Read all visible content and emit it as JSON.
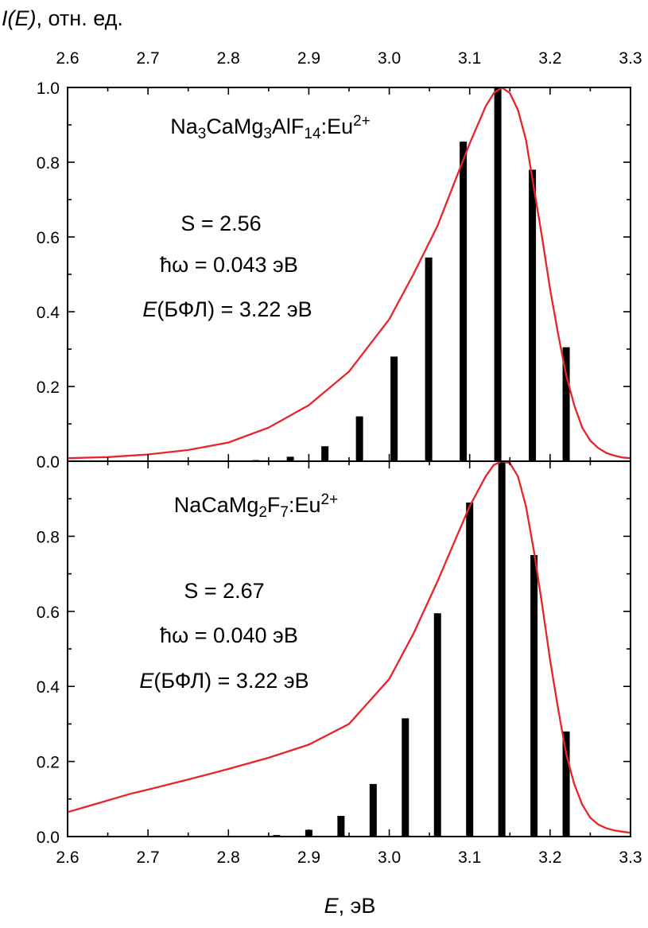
{
  "figure": {
    "y_axis_label_italic": "I(E)",
    "y_axis_label_rest": ", отн. ед.",
    "x_axis_label_italic": "E",
    "x_axis_label_rest": ", эВ"
  },
  "colors": {
    "curve": "#e8232b",
    "bars": "#000000",
    "axes": "#000000"
  },
  "chart_data": [
    {
      "type": "bar",
      "panel": "top",
      "compound": {
        "parts": [
          {
            "t": "Na",
            "s": "n"
          },
          {
            "t": "3",
            "s": "sub"
          },
          {
            "t": "CaMg",
            "s": "n"
          },
          {
            "t": "3",
            "s": "sub"
          },
          {
            "t": "AlF",
            "s": "n"
          },
          {
            "t": "14",
            "s": "sub"
          },
          {
            "t": ":Eu",
            "s": "n"
          },
          {
            "t": "2+",
            "s": "sup"
          }
        ]
      },
      "annotations": {
        "S": "S = 2.56",
        "hw": "ħω = 0.043 эВ",
        "zpl_italic": "E",
        "zpl_rest": "(БФЛ) = 3.22 эВ"
      },
      "xlim": [
        2.6,
        3.3
      ],
      "ylim": [
        0,
        1.0
      ],
      "x_ticks": [
        "2.6",
        "2.7",
        "2.8",
        "2.9",
        "3.0",
        "3.1",
        "3.2",
        "3.3"
      ],
      "y_ticks": [
        "0.0",
        "0.2",
        "0.4",
        "0.6",
        "0.8",
        "1.0"
      ],
      "bars": {
        "x": [
          2.834,
          2.877,
          2.92,
          2.963,
          3.006,
          3.049,
          3.092,
          3.135,
          3.178,
          3.22
        ],
        "values": [
          0.003,
          0.012,
          0.04,
          0.12,
          0.28,
          0.545,
          0.855,
          1.0,
          0.78,
          0.305
        ]
      },
      "curve": {
        "x": [
          2.6,
          2.65,
          2.7,
          2.75,
          2.8,
          2.85,
          2.9,
          2.95,
          3.0,
          3.03,
          3.06,
          3.08,
          3.1,
          3.12,
          3.13,
          3.14,
          3.15,
          3.16,
          3.17,
          3.18,
          3.19,
          3.2,
          3.21,
          3.22,
          3.23,
          3.24,
          3.25,
          3.26,
          3.27,
          3.28,
          3.29,
          3.3
        ],
        "y": [
          0.008,
          0.011,
          0.018,
          0.03,
          0.05,
          0.09,
          0.15,
          0.24,
          0.38,
          0.5,
          0.63,
          0.74,
          0.85,
          0.95,
          0.985,
          1.0,
          0.985,
          0.94,
          0.86,
          0.73,
          0.6,
          0.46,
          0.34,
          0.23,
          0.15,
          0.09,
          0.055,
          0.035,
          0.022,
          0.015,
          0.01,
          0.008
        ]
      }
    },
    {
      "type": "bar",
      "panel": "bottom",
      "compound": {
        "parts": [
          {
            "t": "NaCaMg",
            "s": "n"
          },
          {
            "t": "2",
            "s": "sub"
          },
          {
            "t": "F",
            "s": "n"
          },
          {
            "t": "7",
            "s": "sub"
          },
          {
            "t": ":Eu",
            "s": "n"
          },
          {
            "t": "2+",
            "s": "sup"
          }
        ]
      },
      "annotations": {
        "S": "S = 2.67",
        "hw": "ħω = 0.040 эВ",
        "zpl_italic": "E",
        "zpl_rest": "(БФЛ) = 3.22 эВ"
      },
      "xlim": [
        2.6,
        3.3
      ],
      "ylim": [
        0,
        1.0
      ],
      "x_ticks": [
        "2.6",
        "2.7",
        "2.8",
        "2.9",
        "3.0",
        "3.1",
        "3.2",
        "3.3"
      ],
      "y_ticks": [
        "0.0",
        "0.2",
        "0.4",
        "0.6",
        "0.8"
      ],
      "bars": {
        "x": [
          2.86,
          2.9,
          2.94,
          2.98,
          3.02,
          3.06,
          3.1,
          3.14,
          3.18,
          3.22
        ],
        "values": [
          0.004,
          0.018,
          0.055,
          0.14,
          0.315,
          0.595,
          0.89,
          1.0,
          0.75,
          0.28
        ]
      },
      "curve": {
        "x": [
          2.6,
          2.64,
          2.68,
          2.7,
          2.75,
          2.8,
          2.85,
          2.9,
          2.95,
          3.0,
          3.03,
          3.06,
          3.08,
          3.1,
          3.12,
          3.13,
          3.14,
          3.15,
          3.16,
          3.17,
          3.18,
          3.19,
          3.2,
          3.21,
          3.22,
          3.23,
          3.24,
          3.25,
          3.26,
          3.27,
          3.28,
          3.3
        ],
        "y": [
          0.065,
          0.09,
          0.115,
          0.125,
          0.152,
          0.18,
          0.21,
          0.245,
          0.3,
          0.42,
          0.54,
          0.68,
          0.78,
          0.88,
          0.96,
          0.99,
          1.0,
          0.995,
          0.96,
          0.88,
          0.76,
          0.62,
          0.47,
          0.34,
          0.22,
          0.14,
          0.085,
          0.05,
          0.032,
          0.022,
          0.016,
          0.01
        ]
      }
    }
  ]
}
